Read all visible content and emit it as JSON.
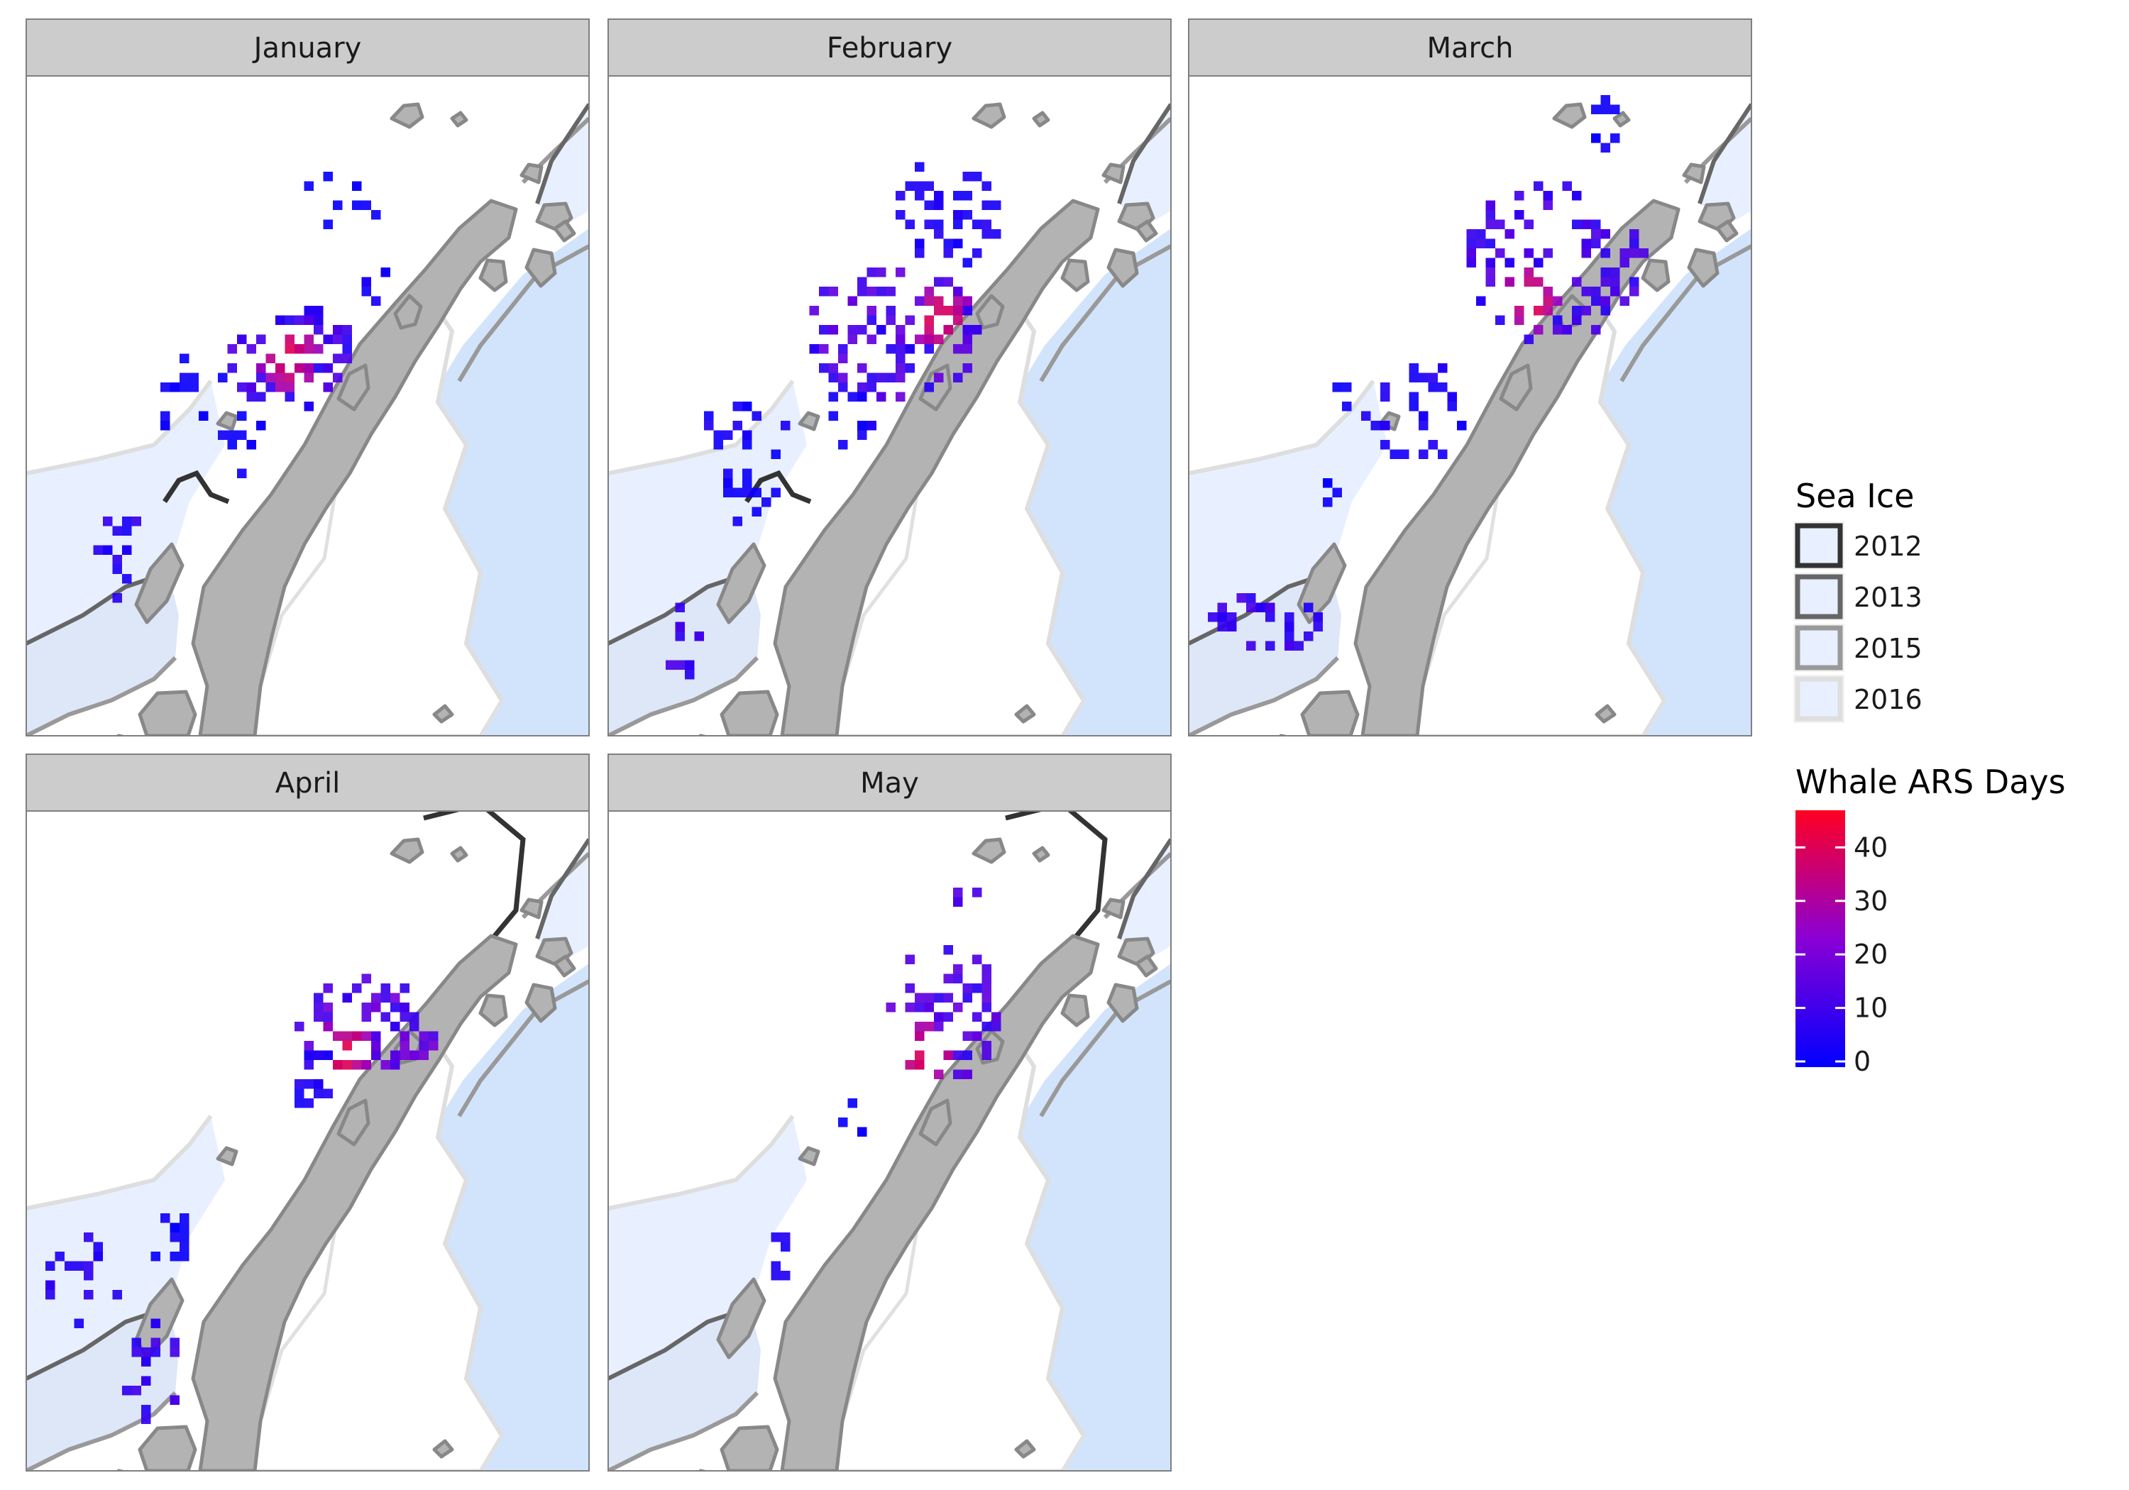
{
  "chart_data": {
    "type": "heatmap",
    "title": "",
    "facets": [
      "January",
      "February",
      "March",
      "April",
      "May"
    ],
    "legend": {
      "position": "right",
      "sea_ice": {
        "title": "Sea Ice",
        "years": [
          "2012",
          "2013",
          "2015",
          "2016"
        ],
        "line_colors": [
          "#333333",
          "#666666",
          "#999999",
          "#dedede"
        ]
      },
      "whale": {
        "title": "Whale ARS Days",
        "range": [
          0,
          48
        ],
        "ticks": [
          "0",
          "10",
          "20",
          "30",
          "40"
        ],
        "colors": [
          "#0000ff",
          "#ff0022"
        ]
      }
    },
    "colors": {
      "land": "#b3b3b3",
      "land_outline": "#888888",
      "ice_fill": "#e8f0ff",
      "ice_shelf": "#d2e4fb",
      "strip": "#cccccc",
      "panel_border": "#7f7f7f"
    },
    "series": [
      {
        "name": "January",
        "clusters": [
          {
            "cx": 0.47,
            "cy": 0.42,
            "rx": 0.11,
            "ry": 0.08,
            "n": 70,
            "intensity": 0.25,
            "hot": [
              0.46,
              0.42
            ]
          },
          {
            "cx": 0.55,
            "cy": 0.18,
            "rx": 0.08,
            "ry": 0.04,
            "n": 10,
            "intensity": 0.05
          },
          {
            "cx": 0.28,
            "cy": 0.48,
            "rx": 0.07,
            "ry": 0.07,
            "n": 14,
            "intensity": 0.05
          },
          {
            "cx": 0.16,
            "cy": 0.72,
            "rx": 0.04,
            "ry": 0.08,
            "n": 14,
            "intensity": 0.15
          },
          {
            "cx": 0.38,
            "cy": 0.55,
            "rx": 0.05,
            "ry": 0.05,
            "n": 10,
            "intensity": 0.06
          },
          {
            "cx": 0.62,
            "cy": 0.3,
            "rx": 0.03,
            "ry": 0.04,
            "n": 6,
            "intensity": 0.08
          }
        ]
      },
      {
        "name": "February",
        "clusters": [
          {
            "cx": 0.5,
            "cy": 0.38,
            "rx": 0.16,
            "ry": 0.1,
            "n": 100,
            "intensity": 0.3,
            "hot": [
              0.58,
              0.36
            ]
          },
          {
            "cx": 0.6,
            "cy": 0.2,
            "rx": 0.1,
            "ry": 0.08,
            "n": 40,
            "intensity": 0.12
          },
          {
            "cx": 0.23,
            "cy": 0.52,
            "rx": 0.07,
            "ry": 0.04,
            "n": 14,
            "intensity": 0.1
          },
          {
            "cx": 0.24,
            "cy": 0.6,
            "rx": 0.05,
            "ry": 0.07,
            "n": 16,
            "intensity": 0.06
          },
          {
            "cx": 0.13,
            "cy": 0.85,
            "rx": 0.03,
            "ry": 0.06,
            "n": 12,
            "intensity": 0.25
          },
          {
            "cx": 0.42,
            "cy": 0.51,
            "rx": 0.04,
            "ry": 0.04,
            "n": 10,
            "intensity": 0.1
          }
        ]
      },
      {
        "name": "March",
        "clusters": [
          {
            "cx": 0.64,
            "cy": 0.28,
            "rx": 0.16,
            "ry": 0.12,
            "n": 100,
            "intensity": 0.25,
            "hot": [
              0.6,
              0.33
            ]
          },
          {
            "cx": 0.73,
            "cy": 0.07,
            "rx": 0.03,
            "ry": 0.04,
            "n": 8,
            "intensity": 0.05
          },
          {
            "cx": 0.4,
            "cy": 0.5,
            "rx": 0.1,
            "ry": 0.08,
            "n": 30,
            "intensity": 0.12
          },
          {
            "cx": 0.14,
            "cy": 0.82,
            "rx": 0.1,
            "ry": 0.04,
            "n": 30,
            "intensity": 0.22
          },
          {
            "cx": 0.24,
            "cy": 0.62,
            "rx": 0.02,
            "ry": 0.02,
            "n": 4,
            "intensity": 0.05
          },
          {
            "cx": 0.27,
            "cy": 0.48,
            "rx": 0.02,
            "ry": 0.02,
            "n": 3,
            "intensity": 0.05
          }
        ]
      },
      {
        "name": "April",
        "clusters": [
          {
            "cx": 0.6,
            "cy": 0.32,
            "rx": 0.13,
            "ry": 0.07,
            "n": 70,
            "intensity": 0.35,
            "hot": [
              0.56,
              0.36
            ]
          },
          {
            "cx": 0.5,
            "cy": 0.4,
            "rx": 0.04,
            "ry": 0.05,
            "n": 14,
            "intensity": 0.15
          },
          {
            "cx": 0.25,
            "cy": 0.61,
            "rx": 0.03,
            "ry": 0.02,
            "n": 6,
            "intensity": 0.05
          },
          {
            "cx": 0.1,
            "cy": 0.7,
            "rx": 0.08,
            "ry": 0.07,
            "n": 16,
            "intensity": 0.15
          },
          {
            "cx": 0.22,
            "cy": 0.84,
            "rx": 0.05,
            "ry": 0.07,
            "n": 22,
            "intensity": 0.22
          },
          {
            "cx": 0.26,
            "cy": 0.66,
            "rx": 0.04,
            "ry": 0.03,
            "n": 6,
            "intensity": 0.05
          }
        ]
      },
      {
        "name": "May",
        "clusters": [
          {
            "cx": 0.59,
            "cy": 0.3,
            "rx": 0.1,
            "ry": 0.1,
            "n": 55,
            "intensity": 0.3,
            "hot": [
              0.56,
              0.36
            ]
          },
          {
            "cx": 0.63,
            "cy": 0.12,
            "rx": 0.02,
            "ry": 0.02,
            "n": 4,
            "intensity": 0.25
          },
          {
            "cx": 0.43,
            "cy": 0.47,
            "rx": 0.02,
            "ry": 0.03,
            "n": 5,
            "intensity": 0.05
          },
          {
            "cx": 0.29,
            "cy": 0.66,
            "rx": 0.02,
            "ry": 0.04,
            "n": 6,
            "intensity": 0.12
          }
        ]
      }
    ]
  }
}
